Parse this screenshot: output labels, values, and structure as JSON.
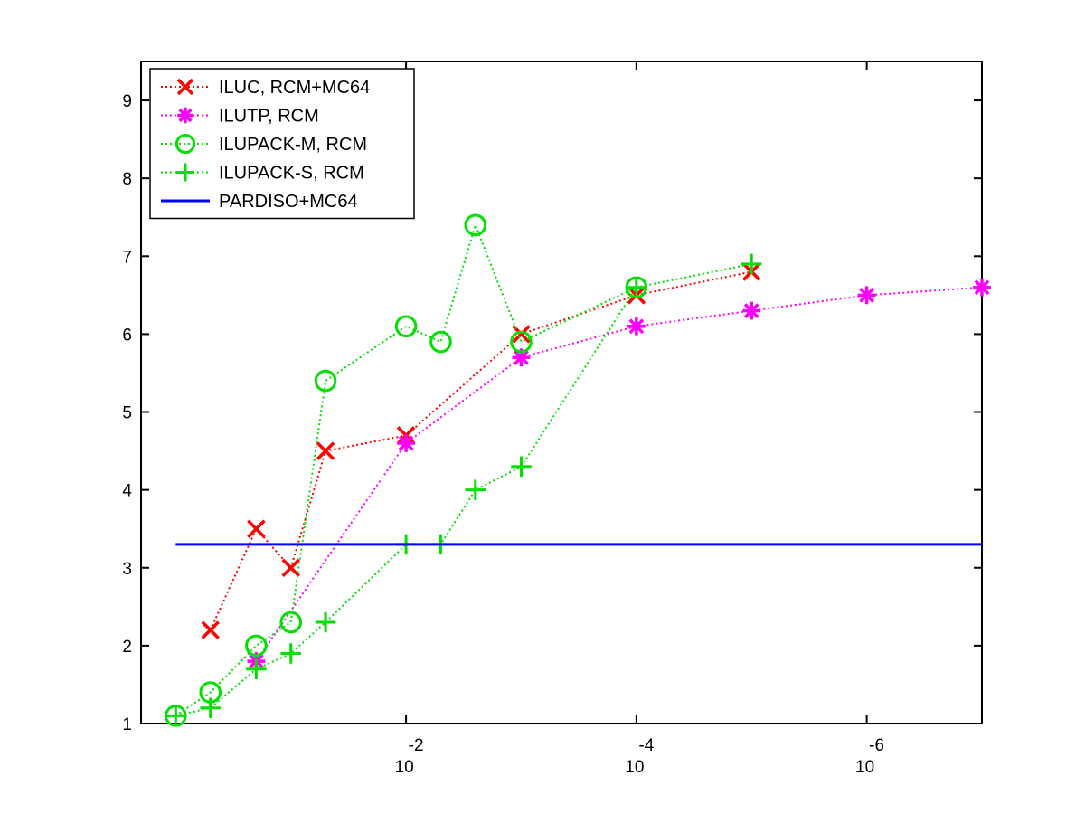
{
  "chart_data": {
    "type": "line",
    "x_scale": "log",
    "x_reversed": true,
    "xlim": [
      2,
      1e-07
    ],
    "ylim": [
      1,
      9.5
    ],
    "grid": false,
    "legend_position": "top-left",
    "x_ticks": [
      {
        "base": "10",
        "exp": "-2",
        "value": 0.01
      },
      {
        "base": "10",
        "exp": "-4",
        "value": 0.0001
      },
      {
        "base": "10",
        "exp": "-6",
        "value": 1e-06
      }
    ],
    "y_ticks": [
      "1",
      "2",
      "3",
      "4",
      "5",
      "6",
      "7",
      "8",
      "9"
    ],
    "series": [
      {
        "name": "ILUC, RCM+MC64",
        "color": "#ff0000",
        "marker": "x",
        "line": "dotted",
        "x": [
          1,
          0.5,
          0.2,
          0.1,
          0.05,
          0.01,
          0.001,
          0.0001,
          1e-05
        ],
        "y": [
          null,
          2.2,
          3.5,
          3.0,
          4.5,
          4.7,
          6.0,
          6.5,
          6.8
        ]
      },
      {
        "name": "ILUTP, RCM",
        "color": "#ff00ff",
        "marker": "asterisk",
        "line": "dotted",
        "x": [
          0.2,
          0.01,
          0.001,
          0.0001,
          1e-05,
          1e-06,
          1e-07
        ],
        "y": [
          1.8,
          4.6,
          5.7,
          6.1,
          6.3,
          6.5,
          6.6
        ]
      },
      {
        "name": "ILUPACK-M, RCM",
        "color": "#00e000",
        "marker": "circle",
        "line": "dotted",
        "x": [
          1,
          0.5,
          0.2,
          0.1,
          0.05,
          0.01,
          0.005,
          0.0025,
          0.001,
          0.0001
        ],
        "y": [
          1.1,
          1.4,
          2.0,
          2.3,
          5.4,
          6.1,
          5.9,
          7.4,
          5.9,
          6.6
        ]
      },
      {
        "name": "ILUPACK-S, RCM",
        "color": "#00e000",
        "marker": "plus",
        "line": "dotted",
        "x": [
          1,
          0.5,
          0.2,
          0.1,
          0.05,
          0.01,
          0.005,
          0.0025,
          0.001,
          0.0001,
          1e-05
        ],
        "y": [
          1.1,
          1.2,
          1.7,
          1.9,
          2.3,
          3.3,
          3.3,
          4.0,
          4.3,
          6.6,
          6.9
        ]
      },
      {
        "name": "PARDISO+MC64",
        "color": "#0000ff",
        "marker": "none",
        "line": "solid",
        "x": [
          1,
          1e-07
        ],
        "y": [
          3.3,
          3.3
        ]
      }
    ]
  }
}
